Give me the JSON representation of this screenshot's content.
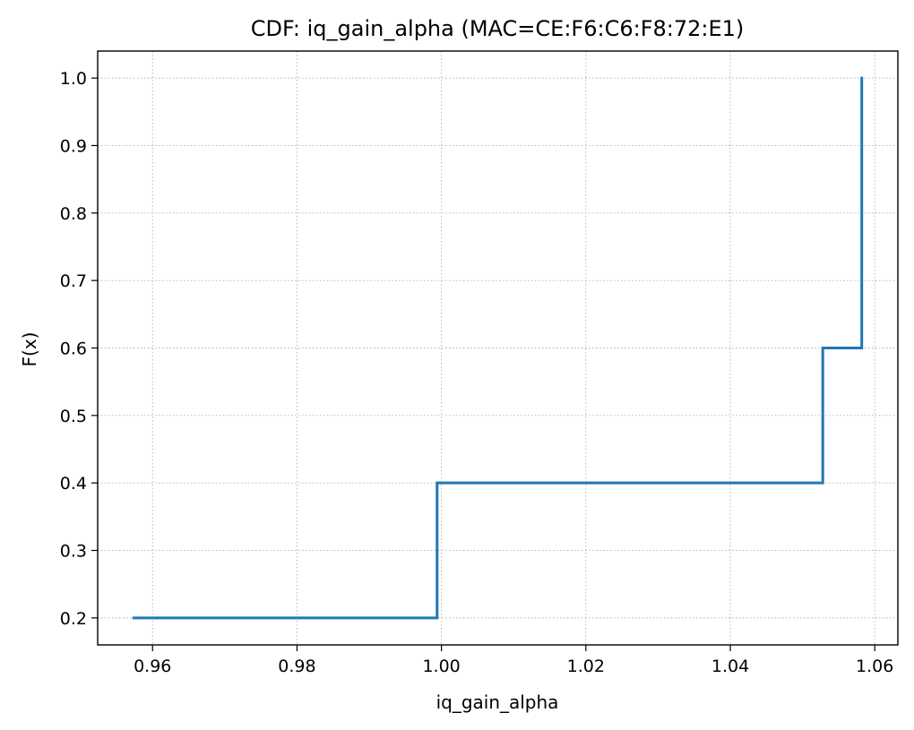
{
  "chart_data": {
    "type": "line",
    "step": "post",
    "title": "CDF: iq_gain_alpha (MAC=CE:F6:C6:F8:72:E1)",
    "xlabel": "iq_gain_alpha",
    "ylabel": "F(x)",
    "xlim": [
      0.9524,
      1.0632
    ],
    "ylim": [
      0.16,
      1.04
    ],
    "grid": true,
    "line_color": "#1f77b4",
    "x_ticks": [
      0.96,
      0.98,
      1.0,
      1.02,
      1.04,
      1.06
    ],
    "x_tick_labels": [
      "0.96",
      "0.98",
      "1.00",
      "1.02",
      "1.04",
      "1.06"
    ],
    "y_ticks": [
      0.2,
      0.3,
      0.4,
      0.5,
      0.6,
      0.7,
      0.8,
      0.9,
      1.0
    ],
    "y_tick_labels": [
      "0.2",
      "0.3",
      "0.4",
      "0.5",
      "0.6",
      "0.7",
      "0.8",
      "0.9",
      "1.0"
    ],
    "series": [
      {
        "x": [
          0.9574,
          0.9994,
          1.0528,
          1.0582,
          1.0582
        ],
        "y": [
          0.2,
          0.4,
          0.6,
          0.6,
          1.0
        ]
      }
    ]
  }
}
